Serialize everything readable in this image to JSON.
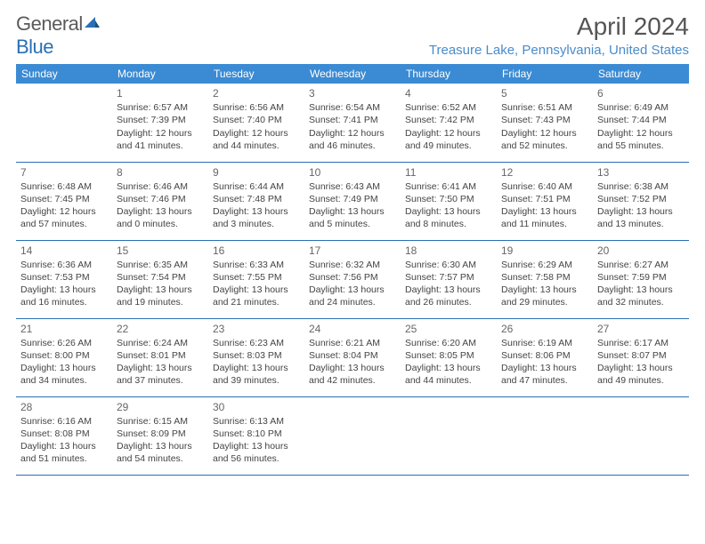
{
  "brand": {
    "part1": "General",
    "part2": "Blue"
  },
  "title": "April 2024",
  "location": "Treasure Lake, Pennsylvania, United States",
  "colors": {
    "header_bg": "#3b8bd4",
    "header_text": "#ffffff",
    "location_text": "#4a8cc9",
    "row_border": "#2a6fb5",
    "body_text": "#444444"
  },
  "weekdays": [
    "Sunday",
    "Monday",
    "Tuesday",
    "Wednesday",
    "Thursday",
    "Friday",
    "Saturday"
  ],
  "weeks": [
    [
      null,
      {
        "d": "1",
        "sr": "Sunrise: 6:57 AM",
        "ss": "Sunset: 7:39 PM",
        "dl1": "Daylight: 12 hours",
        "dl2": "and 41 minutes."
      },
      {
        "d": "2",
        "sr": "Sunrise: 6:56 AM",
        "ss": "Sunset: 7:40 PM",
        "dl1": "Daylight: 12 hours",
        "dl2": "and 44 minutes."
      },
      {
        "d": "3",
        "sr": "Sunrise: 6:54 AM",
        "ss": "Sunset: 7:41 PM",
        "dl1": "Daylight: 12 hours",
        "dl2": "and 46 minutes."
      },
      {
        "d": "4",
        "sr": "Sunrise: 6:52 AM",
        "ss": "Sunset: 7:42 PM",
        "dl1": "Daylight: 12 hours",
        "dl2": "and 49 minutes."
      },
      {
        "d": "5",
        "sr": "Sunrise: 6:51 AM",
        "ss": "Sunset: 7:43 PM",
        "dl1": "Daylight: 12 hours",
        "dl2": "and 52 minutes."
      },
      {
        "d": "6",
        "sr": "Sunrise: 6:49 AM",
        "ss": "Sunset: 7:44 PM",
        "dl1": "Daylight: 12 hours",
        "dl2": "and 55 minutes."
      }
    ],
    [
      {
        "d": "7",
        "sr": "Sunrise: 6:48 AM",
        "ss": "Sunset: 7:45 PM",
        "dl1": "Daylight: 12 hours",
        "dl2": "and 57 minutes."
      },
      {
        "d": "8",
        "sr": "Sunrise: 6:46 AM",
        "ss": "Sunset: 7:46 PM",
        "dl1": "Daylight: 13 hours",
        "dl2": "and 0 minutes."
      },
      {
        "d": "9",
        "sr": "Sunrise: 6:44 AM",
        "ss": "Sunset: 7:48 PM",
        "dl1": "Daylight: 13 hours",
        "dl2": "and 3 minutes."
      },
      {
        "d": "10",
        "sr": "Sunrise: 6:43 AM",
        "ss": "Sunset: 7:49 PM",
        "dl1": "Daylight: 13 hours",
        "dl2": "and 5 minutes."
      },
      {
        "d": "11",
        "sr": "Sunrise: 6:41 AM",
        "ss": "Sunset: 7:50 PM",
        "dl1": "Daylight: 13 hours",
        "dl2": "and 8 minutes."
      },
      {
        "d": "12",
        "sr": "Sunrise: 6:40 AM",
        "ss": "Sunset: 7:51 PM",
        "dl1": "Daylight: 13 hours",
        "dl2": "and 11 minutes."
      },
      {
        "d": "13",
        "sr": "Sunrise: 6:38 AM",
        "ss": "Sunset: 7:52 PM",
        "dl1": "Daylight: 13 hours",
        "dl2": "and 13 minutes."
      }
    ],
    [
      {
        "d": "14",
        "sr": "Sunrise: 6:36 AM",
        "ss": "Sunset: 7:53 PM",
        "dl1": "Daylight: 13 hours",
        "dl2": "and 16 minutes."
      },
      {
        "d": "15",
        "sr": "Sunrise: 6:35 AM",
        "ss": "Sunset: 7:54 PM",
        "dl1": "Daylight: 13 hours",
        "dl2": "and 19 minutes."
      },
      {
        "d": "16",
        "sr": "Sunrise: 6:33 AM",
        "ss": "Sunset: 7:55 PM",
        "dl1": "Daylight: 13 hours",
        "dl2": "and 21 minutes."
      },
      {
        "d": "17",
        "sr": "Sunrise: 6:32 AM",
        "ss": "Sunset: 7:56 PM",
        "dl1": "Daylight: 13 hours",
        "dl2": "and 24 minutes."
      },
      {
        "d": "18",
        "sr": "Sunrise: 6:30 AM",
        "ss": "Sunset: 7:57 PM",
        "dl1": "Daylight: 13 hours",
        "dl2": "and 26 minutes."
      },
      {
        "d": "19",
        "sr": "Sunrise: 6:29 AM",
        "ss": "Sunset: 7:58 PM",
        "dl1": "Daylight: 13 hours",
        "dl2": "and 29 minutes."
      },
      {
        "d": "20",
        "sr": "Sunrise: 6:27 AM",
        "ss": "Sunset: 7:59 PM",
        "dl1": "Daylight: 13 hours",
        "dl2": "and 32 minutes."
      }
    ],
    [
      {
        "d": "21",
        "sr": "Sunrise: 6:26 AM",
        "ss": "Sunset: 8:00 PM",
        "dl1": "Daylight: 13 hours",
        "dl2": "and 34 minutes."
      },
      {
        "d": "22",
        "sr": "Sunrise: 6:24 AM",
        "ss": "Sunset: 8:01 PM",
        "dl1": "Daylight: 13 hours",
        "dl2": "and 37 minutes."
      },
      {
        "d": "23",
        "sr": "Sunrise: 6:23 AM",
        "ss": "Sunset: 8:03 PM",
        "dl1": "Daylight: 13 hours",
        "dl2": "and 39 minutes."
      },
      {
        "d": "24",
        "sr": "Sunrise: 6:21 AM",
        "ss": "Sunset: 8:04 PM",
        "dl1": "Daylight: 13 hours",
        "dl2": "and 42 minutes."
      },
      {
        "d": "25",
        "sr": "Sunrise: 6:20 AM",
        "ss": "Sunset: 8:05 PM",
        "dl1": "Daylight: 13 hours",
        "dl2": "and 44 minutes."
      },
      {
        "d": "26",
        "sr": "Sunrise: 6:19 AM",
        "ss": "Sunset: 8:06 PM",
        "dl1": "Daylight: 13 hours",
        "dl2": "and 47 minutes."
      },
      {
        "d": "27",
        "sr": "Sunrise: 6:17 AM",
        "ss": "Sunset: 8:07 PM",
        "dl1": "Daylight: 13 hours",
        "dl2": "and 49 minutes."
      }
    ],
    [
      {
        "d": "28",
        "sr": "Sunrise: 6:16 AM",
        "ss": "Sunset: 8:08 PM",
        "dl1": "Daylight: 13 hours",
        "dl2": "and 51 minutes."
      },
      {
        "d": "29",
        "sr": "Sunrise: 6:15 AM",
        "ss": "Sunset: 8:09 PM",
        "dl1": "Daylight: 13 hours",
        "dl2": "and 54 minutes."
      },
      {
        "d": "30",
        "sr": "Sunrise: 6:13 AM",
        "ss": "Sunset: 8:10 PM",
        "dl1": "Daylight: 13 hours",
        "dl2": "and 56 minutes."
      },
      null,
      null,
      null,
      null
    ]
  ]
}
